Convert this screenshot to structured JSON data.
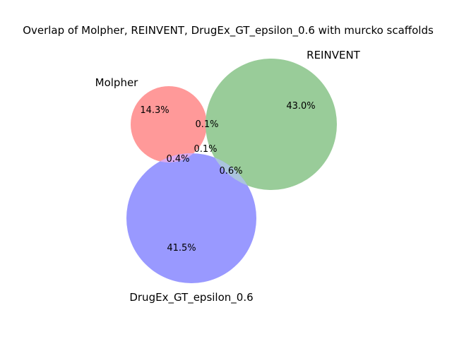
{
  "chart_data": {
    "type": "venn",
    "title": "Overlap of Molpher, REINVENT, DrugEx_GT_epsilon_0.6 with murcko scaffolds",
    "sets": [
      {
        "name": "Molpher",
        "color": "#ff9999",
        "only_label": "14.3%",
        "only_pct": 14.3
      },
      {
        "name": "REINVENT",
        "color": "#99cc99",
        "only_label": "43.0%",
        "only_pct": 43.0
      },
      {
        "name": "DrugEx_GT_epsilon_0.6",
        "color": "#9999ff",
        "only_label": "41.5%",
        "only_pct": 41.5
      }
    ],
    "intersections": {
      "molpher_reinvent": {
        "label": "0.1%",
        "pct": 0.1
      },
      "molpher_drugex": {
        "label": "0.4%",
        "pct": 0.4
      },
      "reinvent_drugex": {
        "label": "0.6%",
        "pct": 0.6
      },
      "all_three": {
        "label": "0.1%",
        "pct": 0.1
      }
    },
    "overlap_colors": {
      "molpher_drugex": "#ddaaee",
      "reinvent_drugex": "#aac4dd"
    }
  }
}
